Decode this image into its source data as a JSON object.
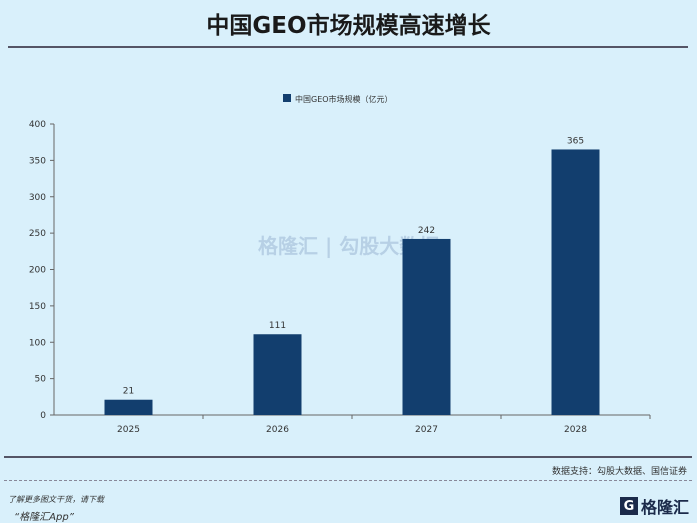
{
  "title": "中国GEO市场规模高速增长",
  "chart_data": {
    "type": "bar",
    "categories": [
      "2025",
      "2026",
      "2027",
      "2028"
    ],
    "series": [
      {
        "name": "中国GEO市场规模（亿元）",
        "values": [
          21,
          111,
          242,
          365
        ]
      }
    ],
    "ylim": [
      0,
      400
    ],
    "yticks": [
      0,
      50,
      100,
      150,
      200,
      250,
      300,
      350,
      400
    ],
    "legend": "top",
    "grid": false,
    "bar_color": "#123e6e"
  },
  "watermark": "格隆汇 | 勾股大数据",
  "source": "数据支持：勾股大数据、国信证券",
  "footer": {
    "line1": "了解更多图文干货，请下载",
    "line2": "“格隆汇App”",
    "logo": "格隆汇",
    "logo_mark": "G"
  }
}
